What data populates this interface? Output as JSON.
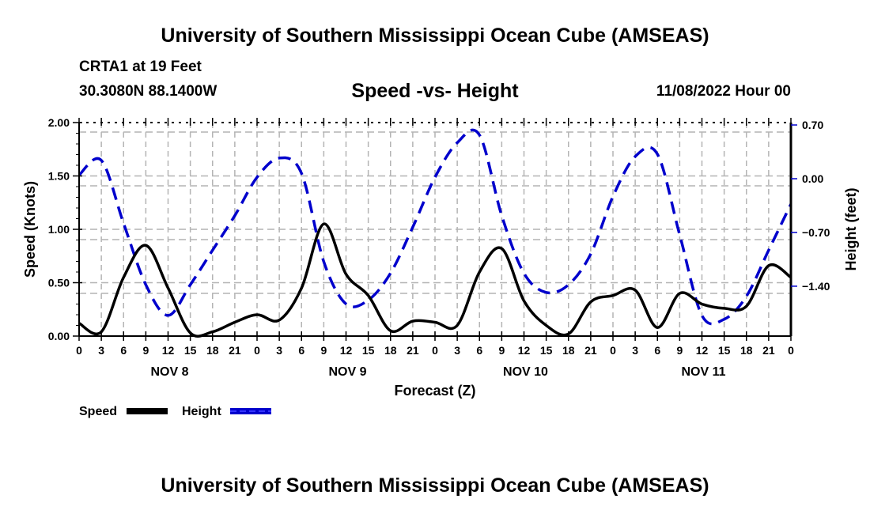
{
  "header": {
    "title": "University of Southern Mississippi Ocean Cube (AMSEAS)",
    "station": "CRTA1 at 19 Feet",
    "coords": "30.3080N  88.1400W",
    "subtitle": "Speed -vs- Height",
    "timestamp": "11/08/2022 Hour 00"
  },
  "footer": {
    "title": "University of Southern Mississippi Ocean Cube (AMSEAS)"
  },
  "colors": {
    "speed": "#000000",
    "height": "#0000cc",
    "grid": "#b4b4b4"
  },
  "chart_data": {
    "type": "line",
    "title": "Speed -vs- Height",
    "xlabel": "Forecast (Z)",
    "ylabel": "Speed (Knots)",
    "y2label": "Height (feet)",
    "xlim_hours": [
      0,
      96
    ],
    "ylim": [
      0,
      2.0
    ],
    "y2lim": [
      -2.0,
      0.76
    ],
    "grid": true,
    "x_tick_labels": [
      "0",
      "3",
      "6",
      "9",
      "12",
      "15",
      "18",
      "21",
      "0",
      "3",
      "6",
      "9",
      "12",
      "15",
      "18",
      "21",
      "0",
      "3",
      "6",
      "9",
      "12",
      "15",
      "18",
      "21",
      "0",
      "3",
      "6",
      "9",
      "12",
      "15",
      "18",
      "21",
      "0"
    ],
    "x_day_labels": [
      {
        "label": "NOV 8",
        "center_hour": 12
      },
      {
        "label": "NOV 9",
        "center_hour": 36
      },
      {
        "label": "NOV 10",
        "center_hour": 60
      },
      {
        "label": "NOV 11",
        "center_hour": 84
      }
    ],
    "y_tick_labels": [
      "0.00",
      "0.50",
      "1.00",
      "1.50",
      "2.00"
    ],
    "y_ticks": [
      0,
      0.5,
      1.0,
      1.5,
      2.0
    ],
    "y2_tick_labels": [
      "0.70",
      "0.00",
      "−0.70",
      "−1.40"
    ],
    "y2_ticks": [
      0.7,
      0.0,
      -0.7,
      -1.4
    ],
    "legend": {
      "placement": "bottom-left",
      "entries": [
        {
          "label": "Speed",
          "style": "solid"
        },
        {
          "label": "Height",
          "style": "dashed"
        }
      ]
    },
    "x_hours": [
      0,
      3,
      6,
      9,
      12,
      15,
      18,
      21,
      24,
      27,
      30,
      33,
      36,
      39,
      42,
      45,
      48,
      51,
      54,
      57,
      60,
      63,
      66,
      69,
      72,
      75,
      78,
      81,
      84,
      87,
      90,
      93,
      96
    ],
    "series": [
      {
        "name": "Speed",
        "axis": "left",
        "units": "knots",
        "values": [
          0.12,
          0.04,
          0.55,
          0.85,
          0.45,
          0.03,
          0.04,
          0.13,
          0.2,
          0.15,
          0.45,
          1.05,
          0.58,
          0.38,
          0.05,
          0.14,
          0.13,
          0.1,
          0.6,
          0.82,
          0.33,
          0.1,
          0.02,
          0.32,
          0.38,
          0.43,
          0.08,
          0.4,
          0.3,
          0.26,
          0.28,
          0.66,
          0.55
        ]
      },
      {
        "name": "Height",
        "axis": "right",
        "units": "feet",
        "values": [
          0.08,
          0.27,
          -0.55,
          -1.35,
          -1.75,
          -1.35,
          -0.9,
          -0.45,
          0.05,
          0.3,
          0.1,
          -1.05,
          -1.6,
          -1.55,
          -1.2,
          -0.6,
          0.05,
          0.5,
          0.6,
          -0.45,
          -1.2,
          -1.45,
          -1.35,
          -0.95,
          -0.2,
          0.32,
          0.35,
          -0.7,
          -1.75,
          -1.8,
          -1.5,
          -0.9,
          -0.3
        ]
      }
    ]
  }
}
